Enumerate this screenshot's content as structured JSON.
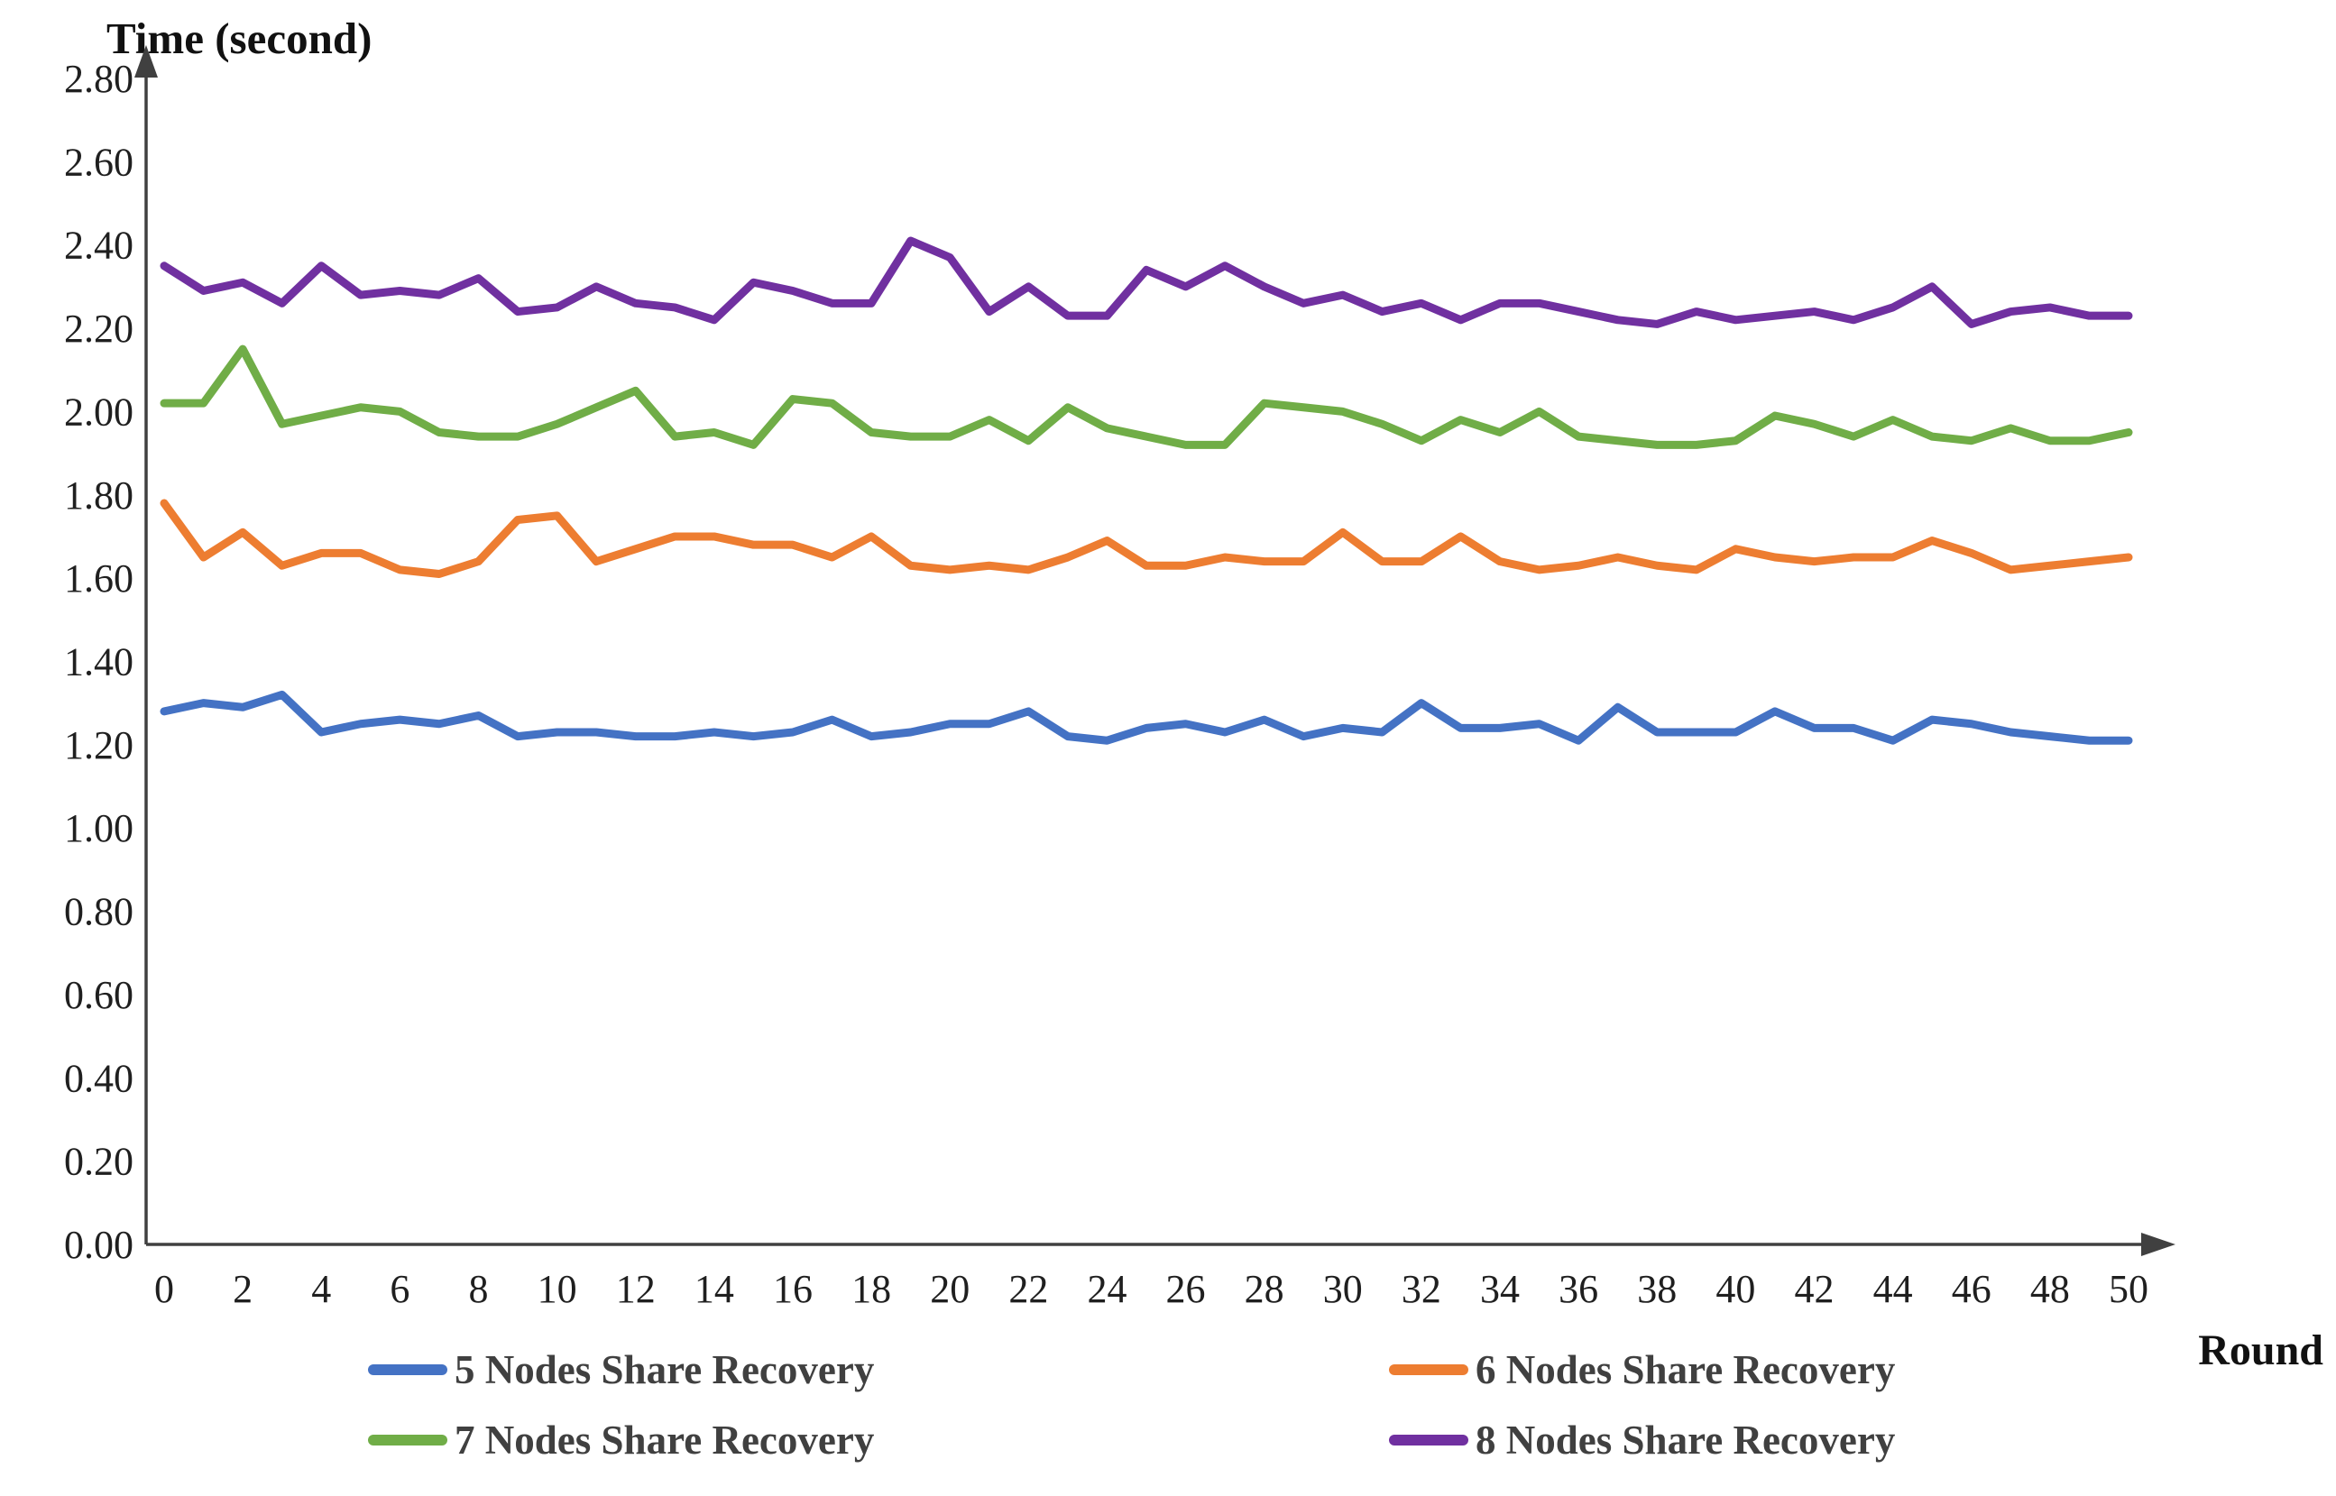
{
  "chart_data": {
    "type": "line",
    "title": "",
    "y_axis_title": "Time (second)",
    "x_axis_title": "Round",
    "xlim": [
      0,
      50
    ],
    "ylim": [
      0.0,
      2.8
    ],
    "y_tick_step": 0.2,
    "x_tick_step": 2,
    "grid": false,
    "legend_position": "bottom",
    "x": [
      0,
      1,
      2,
      3,
      4,
      5,
      6,
      7,
      8,
      9,
      10,
      11,
      12,
      13,
      14,
      15,
      16,
      17,
      18,
      19,
      20,
      21,
      22,
      23,
      24,
      25,
      26,
      27,
      28,
      29,
      30,
      31,
      32,
      33,
      34,
      35,
      36,
      37,
      38,
      39,
      40,
      41,
      42,
      43,
      44,
      45,
      46,
      47,
      48,
      49,
      50
    ],
    "x_tick_labels": [
      "0",
      "2",
      "4",
      "6",
      "8",
      "10",
      "12",
      "14",
      "16",
      "18",
      "20",
      "22",
      "24",
      "26",
      "28",
      "30",
      "32",
      "34",
      "36",
      "38",
      "40",
      "42",
      "44",
      "46",
      "48",
      "50"
    ],
    "y_tick_labels": [
      "0.00",
      "0.20",
      "0.40",
      "0.60",
      "0.80",
      "1.00",
      "1.20",
      "1.40",
      "1.60",
      "1.80",
      "2.00",
      "2.20",
      "2.40",
      "2.60",
      "2.80"
    ],
    "series": [
      {
        "name": "5 Nodes Share Recovery",
        "color": "#4472C4",
        "values": [
          1.28,
          1.3,
          1.29,
          1.32,
          1.23,
          1.25,
          1.26,
          1.25,
          1.27,
          1.22,
          1.23,
          1.23,
          1.22,
          1.22,
          1.23,
          1.22,
          1.23,
          1.26,
          1.22,
          1.23,
          1.25,
          1.25,
          1.28,
          1.22,
          1.21,
          1.24,
          1.25,
          1.23,
          1.26,
          1.22,
          1.24,
          1.23,
          1.3,
          1.24,
          1.24,
          1.25,
          1.21,
          1.29,
          1.23,
          1.23,
          1.23,
          1.28,
          1.24,
          1.24,
          1.21,
          1.26,
          1.25,
          1.23,
          1.22,
          1.21,
          1.21
        ]
      },
      {
        "name": "6 Nodes Share Recovery",
        "color": "#ED7D31",
        "values": [
          1.78,
          1.65,
          1.71,
          1.63,
          1.66,
          1.66,
          1.62,
          1.61,
          1.64,
          1.74,
          1.75,
          1.64,
          1.67,
          1.7,
          1.7,
          1.68,
          1.68,
          1.65,
          1.7,
          1.63,
          1.62,
          1.63,
          1.62,
          1.65,
          1.69,
          1.63,
          1.63,
          1.65,
          1.64,
          1.64,
          1.71,
          1.64,
          1.64,
          1.7,
          1.64,
          1.62,
          1.63,
          1.65,
          1.63,
          1.62,
          1.67,
          1.65,
          1.64,
          1.65,
          1.65,
          1.69,
          1.66,
          1.62,
          1.63,
          1.64,
          1.65
        ]
      },
      {
        "name": "7 Nodes Share Recovery",
        "color": "#70AD47",
        "values": [
          2.02,
          2.02,
          2.15,
          1.97,
          1.99,
          2.01,
          2.0,
          1.95,
          1.94,
          1.94,
          1.97,
          2.01,
          2.05,
          1.94,
          1.95,
          1.92,
          2.03,
          2.02,
          1.95,
          1.94,
          1.94,
          1.98,
          1.93,
          2.01,
          1.96,
          1.94,
          1.92,
          1.92,
          2.02,
          2.01,
          2.0,
          1.97,
          1.93,
          1.98,
          1.95,
          2.0,
          1.94,
          1.93,
          1.92,
          1.92,
          1.93,
          1.99,
          1.97,
          1.94,
          1.98,
          1.94,
          1.93,
          1.96,
          1.93,
          1.93,
          1.95
        ]
      },
      {
        "name": "8 Nodes Share Recovery",
        "color": "#7030A0",
        "values": [
          2.35,
          2.29,
          2.31,
          2.26,
          2.35,
          2.28,
          2.29,
          2.28,
          2.32,
          2.24,
          2.25,
          2.3,
          2.26,
          2.25,
          2.22,
          2.31,
          2.29,
          2.26,
          2.26,
          2.41,
          2.37,
          2.24,
          2.3,
          2.23,
          2.23,
          2.34,
          2.3,
          2.35,
          2.3,
          2.26,
          2.28,
          2.24,
          2.26,
          2.22,
          2.26,
          2.26,
          2.24,
          2.22,
          2.21,
          2.24,
          2.22,
          2.23,
          2.24,
          2.22,
          2.25,
          2.3,
          2.21,
          2.24,
          2.25,
          2.23,
          2.23
        ]
      }
    ]
  },
  "colors": {
    "axis": "#404040",
    "tick_text": "#1f1f1f",
    "legend_text": "#404040",
    "background": "#ffffff"
  }
}
